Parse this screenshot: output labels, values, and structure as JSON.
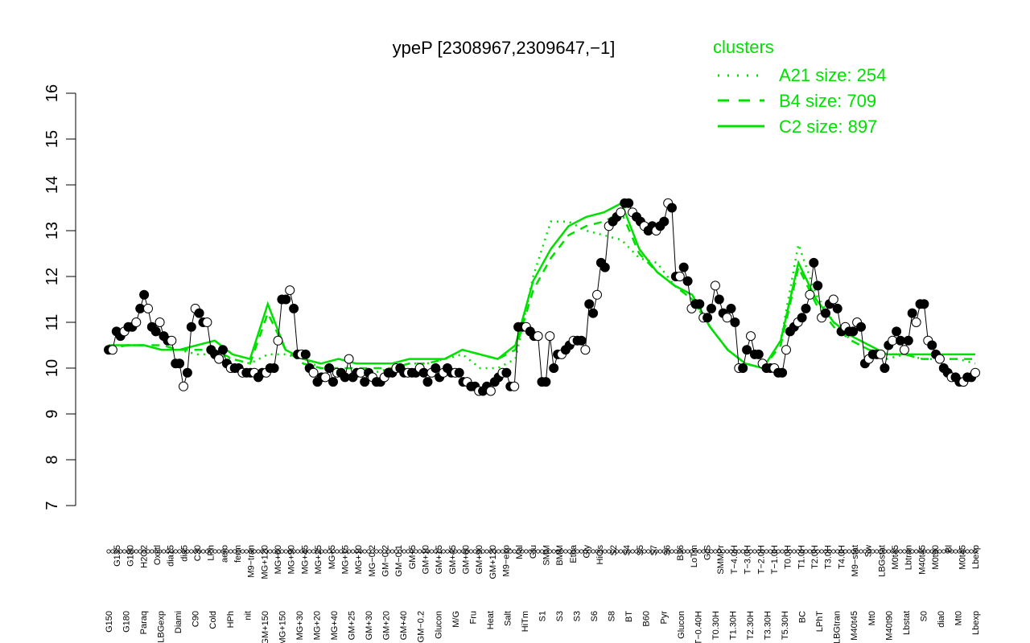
{
  "chart_data": {
    "type": "line",
    "title": "ypeP [2308967,2309647,−1]",
    "xlabel": "",
    "ylabel": "",
    "ylim": [
      7,
      16
    ],
    "yticks": [
      7,
      8,
      9,
      10,
      11,
      12,
      13,
      14,
      15,
      16
    ],
    "x_tick_labels_upper": [
      "G135",
      "G180",
      "H2O2",
      "Oxctl",
      "dia15",
      "dia5",
      "C30",
      "LPh",
      "aero",
      "ferm",
      "M9−tran",
      "MG+120",
      "MG+60",
      "MG+90",
      "MG+45",
      "MG+25",
      "MG+5",
      "MG+15",
      "MG+10",
      "MG−0.2",
      "GM−0.2",
      "GM−0.1",
      "GM+5",
      "GM+10",
      "GM+15",
      "GM+45",
      "GM+60",
      "GM+90",
      "GM+120",
      "M9−exp",
      "Mal",
      "Glu",
      "SMM",
      "BMM",
      "Etha",
      "Gly",
      "HiOs",
      "S2",
      "S4",
      "S5",
      "S7",
      "S6",
      "B36",
      "LoTm",
      "G/S",
      "SMMPr",
      "T−4.0H",
      "T−3.0H",
      "T−2.0H",
      "T−1.0H",
      "T0.0H",
      "T1.0H",
      "T2.0H",
      "T3.0H",
      "T4.0H",
      "M9−stat",
      "Sw",
      "LBGstat",
      "M0t45",
      "Lbtran",
      "M40t45",
      "M0t90",
      "Bl",
      "M0t45",
      "Lbexp"
    ],
    "x_tick_labels_lower": [
      "G150",
      "G180",
      "Paraq",
      "LBGexp",
      "Diami",
      "C90",
      "Cold",
      "HPh",
      "nit",
      "GM+150",
      "MG+150",
      "MG+30",
      "MG+20",
      "MG+40",
      "GM+25",
      "GM+30",
      "GM+20",
      "GM+40",
      "GM−0.2",
      "Glucon",
      "M/G",
      "Fru",
      "Heat",
      "Salt",
      "HiTm",
      "S1",
      "S3",
      "S3",
      "S6",
      "S8",
      "BT",
      "B60",
      "Pyr",
      "Glucon",
      "T−0.40H",
      "T0.30H",
      "T1.30H",
      "T2.30H",
      "T3.30H",
      "T5.30H",
      "BC",
      "LPhT",
      "LBGtran",
      "M40t45",
      "Mt0",
      "M40t90",
      "Lbstat",
      "S0",
      "dia0",
      "Mt0",
      "Lbexp"
    ],
    "point_values": [
      10.4,
      10.4,
      10.8,
      10.7,
      10.8,
      10.9,
      10.9,
      11.0,
      11.3,
      11.6,
      11.3,
      10.9,
      10.8,
      11.0,
      10.7,
      10.6,
      10.6,
      10.1,
      10.1,
      9.6,
      9.9,
      10.9,
      11.3,
      11.2,
      11.0,
      11.0,
      10.4,
      10.3,
      10.2,
      10.4,
      10.1,
      10.0,
      10.0,
      10.0,
      9.9,
      9.9,
      9.9,
      9.9,
      9.8,
      9.9,
      9.9,
      10.0,
      10.0,
      10.6,
      11.5,
      11.5,
      11.7,
      11.3,
      10.3,
      10.3,
      10.3,
      10.0,
      9.9,
      9.7,
      9.8,
      9.8,
      10.0,
      9.7,
      9.9,
      9.9,
      9.8,
      10.2,
      9.8,
      9.9,
      9.9,
      9.7,
      9.9,
      9.8,
      9.7,
      9.7,
      9.8,
      9.9,
      9.9,
      10.0,
      10.0,
      9.9,
      9.9,
      9.9,
      9.9,
      10.0,
      9.9,
      9.7,
      9.9,
      10.0,
      9.8,
      9.9,
      10.0,
      9.9,
      9.9,
      9.9,
      9.7,
      9.7,
      9.6,
      9.6,
      9.5,
      9.5,
      9.6,
      9.5,
      9.7,
      9.8,
      9.9,
      9.9,
      9.6,
      9.6,
      10.9,
      10.9,
      10.9,
      10.8,
      10.7,
      10.7,
      9.7,
      9.7,
      10.7,
      10.0,
      10.3,
      10.3,
      10.4,
      10.5,
      10.6,
      10.6,
      10.6,
      10.4,
      11.4,
      11.2,
      11.6,
      12.3,
      12.2,
      13.1,
      13.2,
      13.3,
      13.4,
      13.6,
      13.6,
      13.4,
      13.3,
      13.2,
      13.1,
      13.0,
      13.1,
      13.0,
      13.1,
      13.2,
      13.6,
      13.5,
      12.0,
      12.0,
      12.2,
      11.9,
      11.3,
      11.4,
      11.4,
      11.1,
      11.1,
      11.3,
      11.8,
      11.5,
      11.2,
      11.1,
      11.3,
      11.0,
      10.0,
      10.0,
      10.4,
      10.7,
      10.3,
      10.3,
      10.1,
      10.0,
      10.0,
      10.0,
      9.9,
      9.9,
      10.4,
      10.8,
      10.9,
      11.0,
      11.1,
      11.3,
      11.6,
      12.3,
      11.8,
      11.1,
      11.2,
      11.4,
      11.5,
      11.3,
      10.8,
      10.9,
      10.8,
      10.8,
      11.0,
      10.9,
      10.1,
      10.2,
      10.3,
      10.3,
      10.3,
      10.0,
      10.5,
      10.6,
      10.8,
      10.6,
      10.4,
      10.6,
      11.2,
      11.0,
      11.4,
      11.4,
      10.6,
      10.5,
      10.3,
      10.2,
      10.0,
      9.9,
      9.8,
      9.8,
      9.7,
      9.7,
      9.8,
      9.8,
      9.9
    ],
    "series": [
      {
        "name": "A21 size: 254",
        "style": "dotted",
        "color": "#00e000",
        "values": [
          10.4,
          10.5,
          10.5,
          10.4,
          10.4,
          10.3,
          10.3,
          10.2,
          10.1,
          10.3,
          10.3,
          10.2,
          10.0,
          9.9,
          9.9,
          9.9,
          10.0,
          10.1,
          10.1,
          10.2,
          10.3,
          10.0,
          10.0,
          10.2,
          12.0,
          13.2,
          13.2,
          13.0,
          12.9,
          12.8,
          12.4,
          12.3,
          11.8,
          11.5,
          10.9,
          10.4,
          10.1,
          10.0,
          10.6,
          12.7,
          11.6,
          11.0,
          10.6,
          10.4,
          10.2,
          10.3,
          10.2,
          10.2,
          10.2,
          10.1
        ]
      },
      {
        "name": "B4 size: 709",
        "style": "dashed",
        "color": "#00e000",
        "values": [
          10.4,
          10.5,
          10.5,
          10.5,
          10.4,
          10.4,
          10.4,
          10.2,
          10.1,
          11.2,
          10.4,
          10.1,
          10.0,
          10.0,
          10.0,
          10.0,
          10.0,
          10.1,
          10.1,
          10.2,
          10.4,
          10.3,
          10.2,
          10.4,
          11.7,
          12.4,
          12.9,
          13.1,
          13.2,
          13.4,
          12.5,
          12.1,
          11.8,
          11.5,
          10.9,
          10.4,
          10.1,
          10.0,
          10.5,
          12.2,
          11.4,
          10.9,
          10.6,
          10.4,
          10.3,
          10.3,
          10.2,
          10.2,
          10.2,
          10.2
        ]
      },
      {
        "name": "C2 size: 897",
        "style": "solid",
        "color": "#00e000",
        "values": [
          10.5,
          10.5,
          10.5,
          10.4,
          10.4,
          10.5,
          10.6,
          10.3,
          10.2,
          11.4,
          10.4,
          10.2,
          10.1,
          10.2,
          10.1,
          10.1,
          10.1,
          10.2,
          10.2,
          10.2,
          10.4,
          10.3,
          10.2,
          10.5,
          11.9,
          12.6,
          13.1,
          13.3,
          13.4,
          13.6,
          12.6,
          12.1,
          11.8,
          11.6,
          10.9,
          10.4,
          10.1,
          10.0,
          10.6,
          12.3,
          11.5,
          11.0,
          10.7,
          10.5,
          10.3,
          10.3,
          10.3,
          10.3,
          10.3,
          10.3
        ]
      }
    ],
    "legend": {
      "title": "clusters",
      "position": "top-right"
    },
    "grid": false
  }
}
